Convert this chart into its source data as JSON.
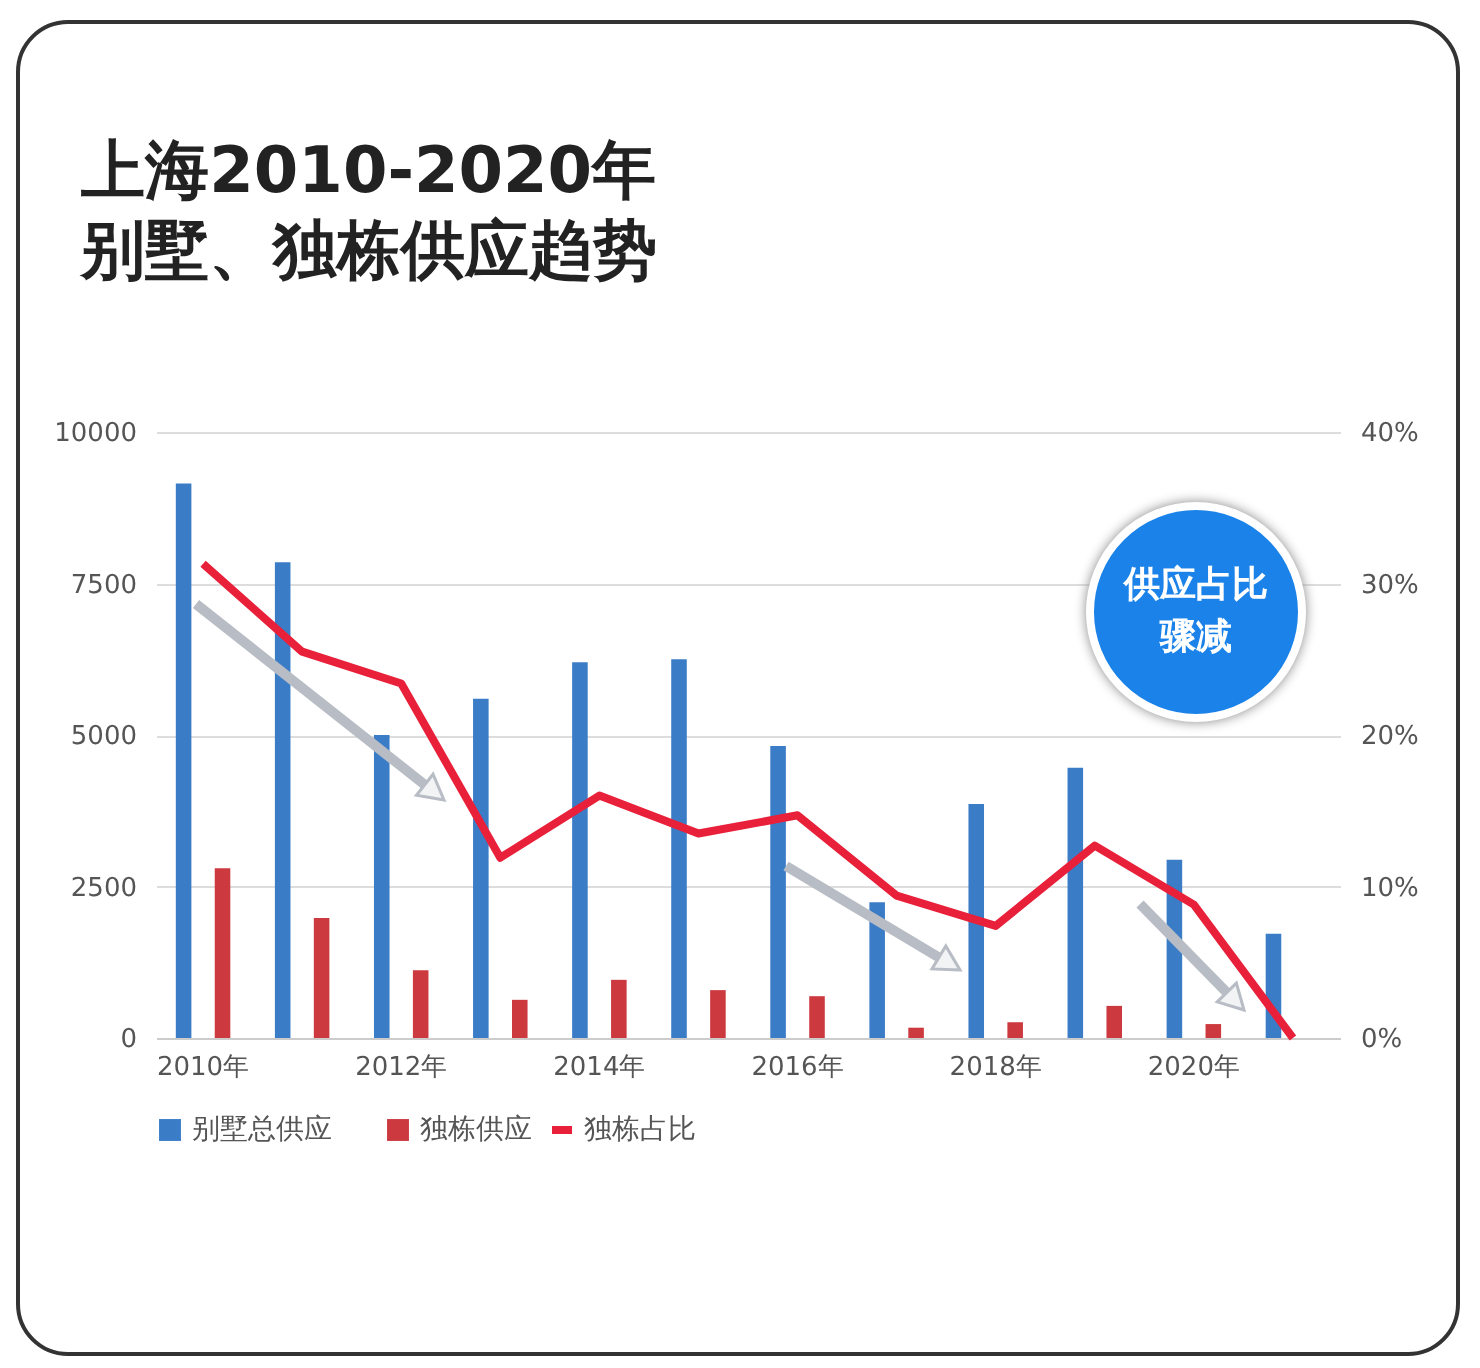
{
  "chart_data": {
    "type": "bar",
    "title": "上海2010-2020年",
    "subtitle": "别墅、独栋供应趋势",
    "categories": [
      "2010年",
      null,
      "2012年",
      null,
      "2014年",
      null,
      "2016年",
      null,
      "2018年",
      null,
      "2020年",
      null
    ],
    "series": [
      {
        "name": "别墅总供应",
        "color": "#3b7cc7",
        "values": [
          9150,
          7850,
          5000,
          5600,
          6200,
          6250,
          4820,
          2240,
          3860,
          4460,
          2940,
          1720
        ]
      },
      {
        "name": "独栋供应",
        "color": "#cc3a40",
        "values": [
          2800,
          1980,
          1120,
          630,
          960,
          790,
          690,
          170,
          260,
          530,
          230,
          0
        ]
      },
      {
        "name": "独栋占比",
        "type": "line",
        "axis": "y2",
        "color": "#e8203a",
        "values": [
          31.3,
          25.5,
          23.4,
          11.9,
          16.0,
          13.5,
          14.7,
          9.4,
          7.4,
          12.7,
          8.8,
          0
        ]
      }
    ],
    "ylim": [
      0,
      10000
    ],
    "yticks": [
      0,
      2500,
      5000,
      7500,
      10000
    ],
    "y2lim": [
      0,
      40
    ],
    "y2ticks": [
      {
        "value": 0,
        "label": "0%"
      },
      {
        "value": 10,
        "label": "10%"
      },
      {
        "value": 20,
        "label": "20%"
      },
      {
        "value": 30,
        "label": "30%"
      },
      {
        "value": 40,
        "label": "40%"
      }
    ],
    "grid": "y",
    "legend": "bottom",
    "annotations": [
      "供应占比",
      "骤减"
    ]
  }
}
